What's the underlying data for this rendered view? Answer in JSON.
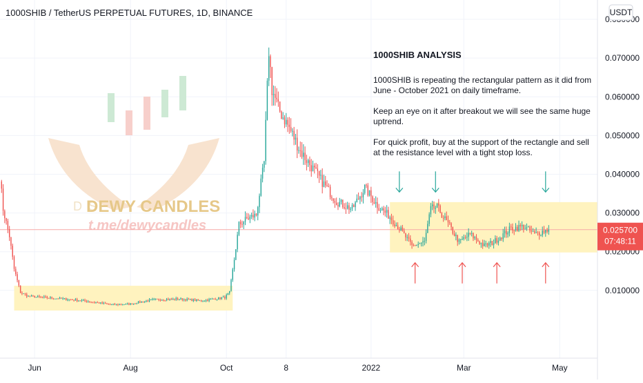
{
  "header": {
    "title": "1000SHIB / TetherUS PERPETUAL FUTURES, 1D, BINANCE"
  },
  "currency_button": {
    "label": "USDT"
  },
  "price_tag": {
    "price": "0.025700",
    "countdown": "07:48:11",
    "color": "#ef5350"
  },
  "watermark": {
    "brand": "DEWY CANDLES",
    "link": "t.me/dewycandles",
    "faded": "D                              S",
    "colors": {
      "green": "#cbe8d2",
      "red": "#f6c9c6",
      "hands": "#f6dcc4"
    }
  },
  "annotation": {
    "heading": "1000SHIB ANALYSIS",
    "lines": [
      "1000SHIB is repeating the rectangular pattern as it did from",
      "June - October 2021 on daily timeframe.",
      "",
      "Keep an eye on it after breakout we will see the same huge",
      "uptrend.",
      "",
      "For quick profit, buy at the support of the rectangle and sell",
      "at the resistance level with a tight stop loss."
    ]
  },
  "colors": {
    "up": "#26a69a",
    "down": "#ef5350",
    "rect_fill": "#fff3bf",
    "grid": "#f0f3fa",
    "axis": "#e0e3eb"
  },
  "chart_data": {
    "type": "candlestick",
    "title": "1000SHIB / TetherUS PERPETUAL FUTURES, 1D, BINANCE",
    "y_axis": {
      "ticks": [
        "0.080000",
        "0.070000",
        "0.060000",
        "0.050000",
        "0.040000",
        "0.030000",
        "0.020000",
        "0.010000"
      ],
      "range": [
        -0.0075,
        0.085
      ]
    },
    "x_axis": {
      "ticks": [
        "Jun",
        "Aug",
        "Oct",
        "8",
        "2022",
        "Mar",
        "May"
      ],
      "range": [
        "2021-05-10",
        "2022-05-25"
      ]
    },
    "last_price": 0.0257,
    "rectangles": [
      {
        "x": [
          "2021-05-19",
          "2021-10-05"
        ],
        "y": [
          0.0048,
          0.0112
        ]
      },
      {
        "x": [
          "2022-01-13",
          "2022-05-25"
        ],
        "y": [
          0.0198,
          0.0328
        ]
      }
    ],
    "arrows_down": [
      {
        "date": "2022-01-19",
        "price": 0.0345
      },
      {
        "date": "2022-02-11",
        "price": 0.0345
      },
      {
        "date": "2022-04-22",
        "price": 0.0345
      }
    ],
    "arrows_up": [
      {
        "date": "2022-01-29",
        "price": 0.0175
      },
      {
        "date": "2022-02-28",
        "price": 0.0175
      },
      {
        "date": "2022-03-22",
        "price": 0.0175
      },
      {
        "date": "2022-04-22",
        "price": 0.0175
      }
    ],
    "anchors": [
      [
        "2021-05-10",
        0.0395
      ],
      [
        "2021-05-12",
        0.031
      ],
      [
        "2021-05-16",
        0.024
      ],
      [
        "2021-05-19",
        0.0155
      ],
      [
        "2021-05-23",
        0.0095
      ],
      [
        "2021-05-28",
        0.0085
      ],
      [
        "2021-06-05",
        0.0082
      ],
      [
        "2021-06-20",
        0.0078
      ],
      [
        "2021-07-05",
        0.0072
      ],
      [
        "2021-07-20",
        0.0063
      ],
      [
        "2021-08-01",
        0.0065
      ],
      [
        "2021-08-15",
        0.0076
      ],
      [
        "2021-09-01",
        0.0078
      ],
      [
        "2021-09-15",
        0.0073
      ],
      [
        "2021-09-30",
        0.0082
      ],
      [
        "2021-10-03",
        0.0095
      ],
      [
        "2021-10-06",
        0.018
      ],
      [
        "2021-10-09",
        0.027
      ],
      [
        "2021-10-14",
        0.0285
      ],
      [
        "2021-10-20",
        0.0295
      ],
      [
        "2021-10-25",
        0.043
      ],
      [
        "2021-10-28",
        0.072
      ],
      [
        "2021-10-30",
        0.062
      ],
      [
        "2021-11-03",
        0.057
      ],
      [
        "2021-11-10",
        0.052
      ],
      [
        "2021-11-17",
        0.046
      ],
      [
        "2021-11-24",
        0.042
      ],
      [
        "2021-12-01",
        0.038
      ],
      [
        "2021-12-10",
        0.033
      ],
      [
        "2021-12-20",
        0.031
      ],
      [
        "2021-12-28",
        0.0365
      ],
      [
        "2022-01-05",
        0.032
      ],
      [
        "2022-01-13",
        0.029
      ],
      [
        "2022-01-20",
        0.0255
      ],
      [
        "2022-01-27",
        0.0215
      ],
      [
        "2022-02-04",
        0.0225
      ],
      [
        "2022-02-08",
        0.031
      ],
      [
        "2022-02-12",
        0.0315
      ],
      [
        "2022-02-20",
        0.0265
      ],
      [
        "2022-02-26",
        0.0225
      ],
      [
        "2022-03-05",
        0.0245
      ],
      [
        "2022-03-14",
        0.0215
      ],
      [
        "2022-03-20",
        0.0225
      ],
      [
        "2022-03-31",
        0.026
      ],
      [
        "2022-04-08",
        0.0265
      ],
      [
        "2022-04-15",
        0.0245
      ],
      [
        "2022-04-22",
        0.0255
      ],
      [
        "2022-04-24",
        0.0257
      ]
    ]
  }
}
